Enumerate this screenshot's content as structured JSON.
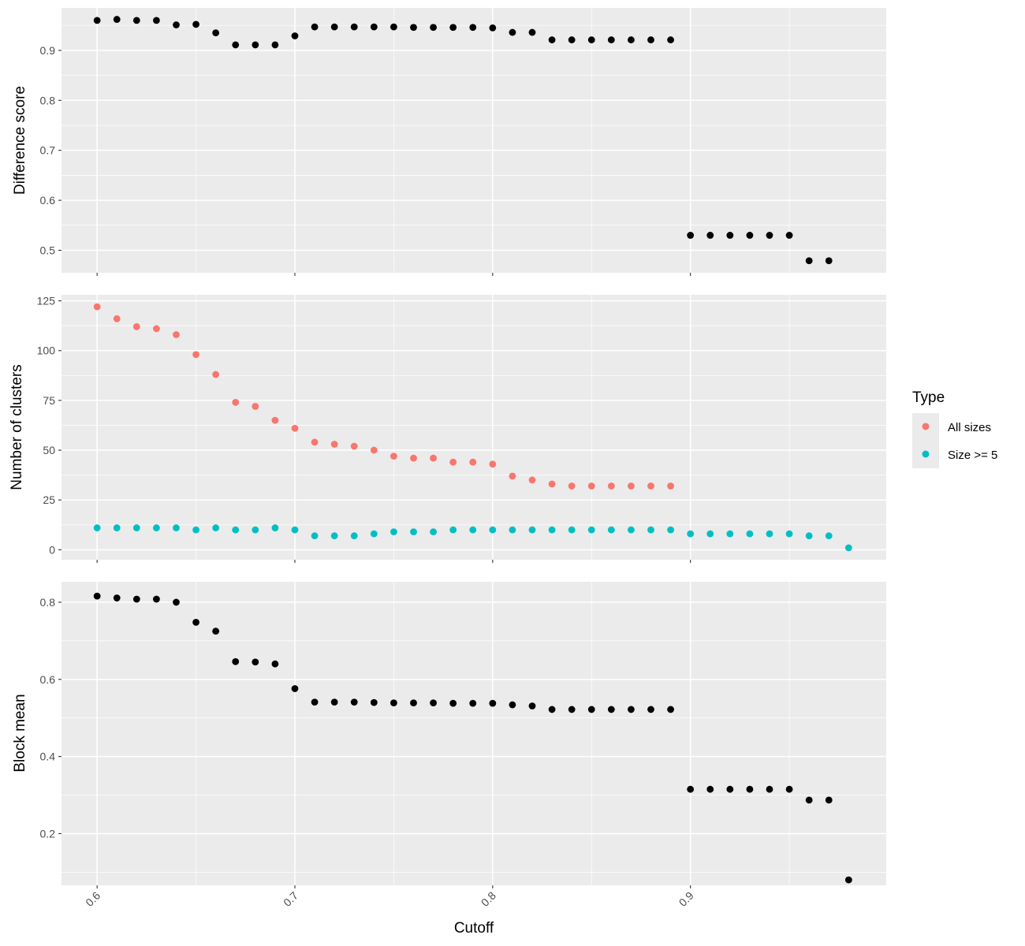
{
  "chart_data": {
    "type": "scatter",
    "x_label": "Cutoff",
    "x_range": [
      0.582,
      0.999
    ],
    "x_ticks": [
      0.6,
      0.7,
      0.8,
      0.9
    ],
    "x_tick_labels": [
      "0.6",
      "0.7",
      "0.8",
      "0.9"
    ],
    "grid": true,
    "legend": {
      "title": "Type",
      "position": "right",
      "entries": [
        {
          "label": "All sizes",
          "color": "#F8766D"
        },
        {
          "label": "Size >= 5",
          "color": "#00BFC4"
        }
      ]
    },
    "panels": [
      {
        "id": "difference",
        "ylabel": "Difference score",
        "ylim": [
          0.455,
          0.985
        ],
        "y_ticks": [
          0.5,
          0.6,
          0.7,
          0.8,
          0.9
        ],
        "y_tick_labels": [
          "0.5",
          "0.6",
          "0.7",
          "0.8",
          "0.9"
        ],
        "series": [
          {
            "color": "#000000",
            "x": [
              0.6,
              0.61,
              0.62,
              0.63,
              0.64,
              0.65,
              0.66,
              0.67,
              0.68,
              0.69,
              0.7,
              0.71,
              0.72,
              0.73,
              0.74,
              0.75,
              0.76,
              0.77,
              0.78,
              0.79,
              0.8,
              0.81,
              0.82,
              0.83,
              0.84,
              0.85,
              0.86,
              0.87,
              0.88,
              0.89,
              0.9,
              0.91,
              0.92,
              0.93,
              0.94,
              0.95,
              0.96,
              0.97
            ],
            "y": [
              0.96,
              0.962,
              0.96,
              0.96,
              0.951,
              0.952,
              0.935,
              0.911,
              0.911,
              0.911,
              0.929,
              0.947,
              0.947,
              0.947,
              0.947,
              0.947,
              0.946,
              0.946,
              0.946,
              0.946,
              0.945,
              0.936,
              0.936,
              0.921,
              0.921,
              0.921,
              0.921,
              0.921,
              0.921,
              0.921,
              0.53,
              0.53,
              0.53,
              0.53,
              0.53,
              0.53,
              0.479,
              0.479
            ]
          }
        ]
      },
      {
        "id": "clusters",
        "ylabel": "Number of clusters",
        "ylim": [
          -5,
          128
        ],
        "y_ticks": [
          0,
          25,
          50,
          75,
          100,
          125
        ],
        "y_tick_labels": [
          "0",
          "25",
          "50",
          "75",
          "100",
          "125"
        ],
        "series": [
          {
            "name": "All sizes",
            "color": "#F8766D",
            "x": [
              0.6,
              0.61,
              0.62,
              0.63,
              0.64,
              0.65,
              0.66,
              0.67,
              0.68,
              0.69,
              0.7,
              0.71,
              0.72,
              0.73,
              0.74,
              0.75,
              0.76,
              0.77,
              0.78,
              0.79,
              0.8,
              0.81,
              0.82,
              0.83,
              0.84,
              0.85,
              0.86,
              0.87,
              0.88,
              0.89
            ],
            "y": [
              122,
              116,
              112,
              111,
              108,
              98,
              88,
              74,
              72,
              65,
              61,
              54,
              53,
              52,
              50,
              47,
              46,
              46,
              44,
              44,
              43,
              37,
              35,
              33,
              32,
              32,
              32,
              32,
              32,
              32
            ]
          },
          {
            "name": "Size >= 5",
            "color": "#00BFC4",
            "x": [
              0.6,
              0.61,
              0.62,
              0.63,
              0.64,
              0.65,
              0.66,
              0.67,
              0.68,
              0.69,
              0.7,
              0.71,
              0.72,
              0.73,
              0.74,
              0.75,
              0.76,
              0.77,
              0.78,
              0.79,
              0.8,
              0.81,
              0.82,
              0.83,
              0.84,
              0.85,
              0.86,
              0.87,
              0.88,
              0.89,
              0.9,
              0.91,
              0.92,
              0.93,
              0.94,
              0.95,
              0.96,
              0.97,
              0.98
            ],
            "y": [
              11,
              11,
              11,
              11,
              11,
              10,
              11,
              10,
              10,
              11,
              10,
              7,
              7,
              7,
              8,
              9,
              9,
              9,
              10,
              10,
              10,
              10,
              10,
              10,
              10,
              10,
              10,
              10,
              10,
              10,
              8,
              8,
              8,
              8,
              8,
              8,
              7,
              7,
              1
            ]
          }
        ]
      },
      {
        "id": "blockmean",
        "ylabel": "Block mean",
        "ylim": [
          0.066,
          0.853
        ],
        "y_ticks": [
          0.2,
          0.4,
          0.6,
          0.8
        ],
        "y_tick_labels": [
          "0.2",
          "0.4",
          "0.6",
          "0.8"
        ],
        "series": [
          {
            "color": "#000000",
            "x": [
              0.6,
              0.61,
              0.62,
              0.63,
              0.64,
              0.65,
              0.66,
              0.67,
              0.68,
              0.69,
              0.7,
              0.71,
              0.72,
              0.73,
              0.74,
              0.75,
              0.76,
              0.77,
              0.78,
              0.79,
              0.8,
              0.81,
              0.82,
              0.83,
              0.84,
              0.85,
              0.86,
              0.87,
              0.88,
              0.89,
              0.9,
              0.91,
              0.92,
              0.93,
              0.94,
              0.95,
              0.96,
              0.97,
              0.98
            ],
            "y": [
              0.816,
              0.811,
              0.808,
              0.808,
              0.8,
              0.748,
              0.725,
              0.646,
              0.645,
              0.64,
              0.576,
              0.541,
              0.541,
              0.541,
              0.54,
              0.539,
              0.539,
              0.539,
              0.538,
              0.538,
              0.538,
              0.534,
              0.531,
              0.522,
              0.522,
              0.522,
              0.522,
              0.522,
              0.522,
              0.522,
              0.315,
              0.315,
              0.315,
              0.315,
              0.315,
              0.315,
              0.287,
              0.287,
              0.08
            ]
          }
        ]
      }
    ]
  }
}
